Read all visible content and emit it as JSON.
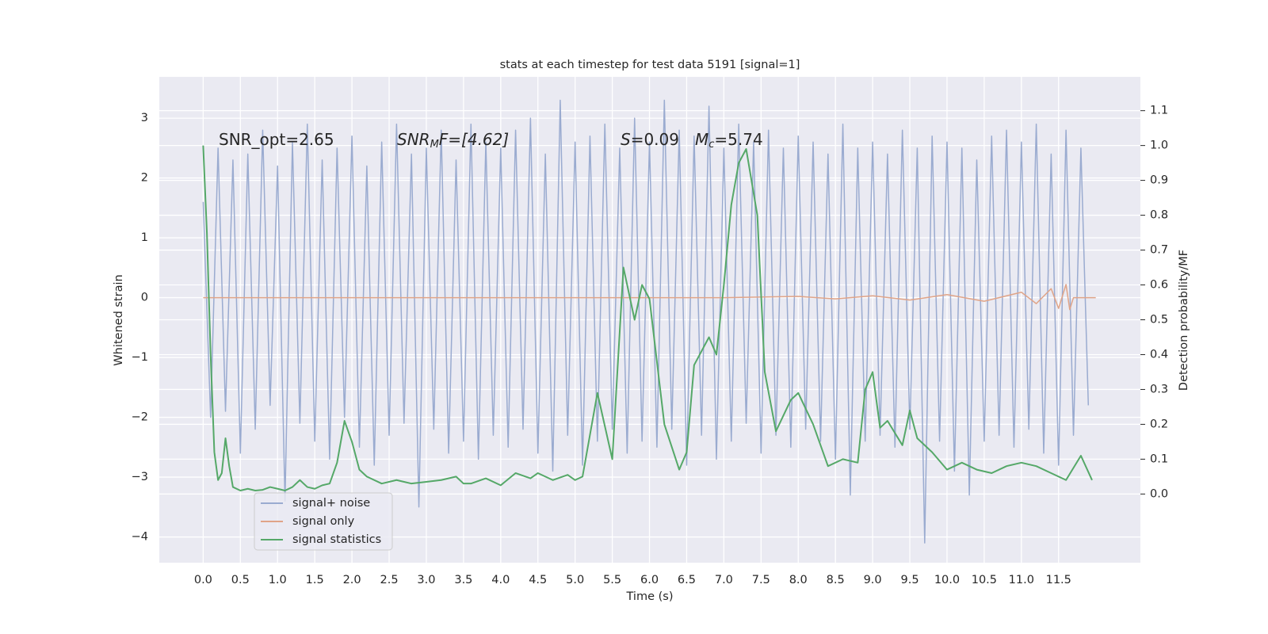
{
  "chart_data": {
    "type": "line",
    "title": "stats at each timestep for test data 5191 [signal=1]",
    "x_label": "Time (s)",
    "y_label": "Whitened strain",
    "y2_label": "Detection probability/MF",
    "xlim": [
      -0.59,
      12.6
    ],
    "ylim": [
      -4.43,
      3.69
    ],
    "y2lim": [
      -0.197,
      1.197
    ],
    "xticks": [
      {
        "value": 0,
        "label": "0.0"
      },
      {
        "value": 0.5,
        "label": "0.5"
      },
      {
        "value": 1,
        "label": "1.0"
      },
      {
        "value": 1.5,
        "label": "1.5"
      },
      {
        "value": 2,
        "label": "2.0"
      },
      {
        "value": 2.5,
        "label": "2.5"
      },
      {
        "value": 3,
        "label": "3.0"
      },
      {
        "value": 3.5,
        "label": "3.5"
      },
      {
        "value": 4,
        "label": "4.0"
      },
      {
        "value": 4.5,
        "label": "4.5"
      },
      {
        "value": 5,
        "label": "5.0"
      },
      {
        "value": 5.5,
        "label": "5.5"
      },
      {
        "value": 6,
        "label": "6.0"
      },
      {
        "value": 6.5,
        "label": "6.5"
      },
      {
        "value": 7,
        "label": "7.0"
      },
      {
        "value": 7.5,
        "label": "7.5"
      },
      {
        "value": 8,
        "label": "8.0"
      },
      {
        "value": 8.5,
        "label": "8.5"
      },
      {
        "value": 9,
        "label": "9.0"
      },
      {
        "value": 9.5,
        "label": "9.5"
      },
      {
        "value": 10,
        "label": "10.0"
      },
      {
        "value": 10.5,
        "label": "10.5"
      },
      {
        "value": 11,
        "label": "11.0"
      },
      {
        "value": 11.5,
        "label": "11.5"
      }
    ],
    "yticks": [
      {
        "value": -4,
        "label": "−4"
      },
      {
        "value": -3,
        "label": "−3"
      },
      {
        "value": -2,
        "label": "−2"
      },
      {
        "value": -1,
        "label": "−1"
      },
      0,
      1,
      2,
      3
    ],
    "y2ticks": [
      {
        "value": 0,
        "label": "0.0"
      },
      {
        "value": 0.1,
        "label": "0.1"
      },
      {
        "value": 0.2,
        "label": "0.2"
      },
      {
        "value": 0.3,
        "label": "0.3"
      },
      {
        "value": 0.4,
        "label": "0.4"
      },
      {
        "value": 0.5,
        "label": "0.5"
      },
      {
        "value": 0.6,
        "label": "0.6"
      },
      {
        "value": 0.7,
        "label": "0.7"
      },
      {
        "value": 0.8,
        "label": "0.8"
      },
      {
        "value": 0.9,
        "label": "0.9"
      },
      {
        "value": 1,
        "label": "1.0"
      },
      {
        "value": 1.1,
        "label": "1.1"
      }
    ],
    "grid": true,
    "legend": "lower left",
    "annotations": [
      [
        "SNR_opt=2.65"
      ],
      [
        "SNR",
        "M",
        "F=[4.62]"
      ],
      [
        "S",
        "=0.09"
      ],
      [
        "M",
        "c",
        "=5.74"
      ]
    ],
    "series": [
      {
        "name": "signal+ noise",
        "color": "#9aabd0",
        "axis": "y",
        "x": [
          0,
          0.1,
          0.2,
          0.3,
          0.4,
          0.5,
          0.6,
          0.7,
          0.8,
          0.9,
          1,
          1.1,
          1.2,
          1.3,
          1.4,
          1.5,
          1.6,
          1.7,
          1.8,
          1.9,
          2,
          2.1,
          2.2,
          2.3,
          2.4,
          2.5,
          2.6,
          2.7,
          2.8,
          2.9,
          3,
          3.1,
          3.2,
          3.3,
          3.4,
          3.5,
          3.6,
          3.7,
          3.8,
          3.9,
          4,
          4.1,
          4.2,
          4.3,
          4.4,
          4.5,
          4.6,
          4.7,
          4.8,
          4.9,
          5,
          5.1,
          5.2,
          5.3,
          5.4,
          5.5,
          5.6,
          5.7,
          5.8,
          5.9,
          6,
          6.1,
          6.2,
          6.3,
          6.4,
          6.5,
          6.6,
          6.7,
          6.8,
          6.9,
          7,
          7.1,
          7.2,
          7.3,
          7.4,
          7.5,
          7.6,
          7.7,
          7.8,
          7.9,
          8,
          8.1,
          8.2,
          8.3,
          8.4,
          8.5,
          8.6,
          8.7,
          8.8,
          8.9,
          9,
          9.1,
          9.2,
          9.3,
          9.4,
          9.5,
          9.6,
          9.7,
          9.8,
          9.9,
          10,
          10.1,
          10.2,
          10.3,
          10.4,
          10.5,
          10.6,
          10.7,
          10.8,
          10.9,
          11,
          11.1,
          11.2,
          11.3,
          11.4,
          11.5,
          11.6,
          11.7,
          11.8,
          11.9
        ],
        "values": [
          1.6,
          -2.0,
          2.5,
          -1.9,
          2.3,
          -2.6,
          2.4,
          -2.2,
          2.8,
          -1.8,
          2.2,
          -3.4,
          2.6,
          -2.1,
          2.9,
          -2.4,
          2.3,
          -2.7,
          2.5,
          -2.0,
          2.7,
          -2.5,
          2.2,
          -2.8,
          2.6,
          -2.3,
          2.9,
          -2.1,
          2.4,
          -3.5,
          2.5,
          -2.2,
          2.8,
          -2.6,
          2.3,
          -2.4,
          2.9,
          -2.7,
          2.6,
          -2.3,
          2.5,
          -2.5,
          2.8,
          -2.2,
          3.0,
          -2.6,
          2.4,
          -2.9,
          3.3,
          -2.3,
          2.6,
          -2.8,
          2.7,
          -2.4,
          2.9,
          -2.2,
          2.5,
          -2.6,
          3.0,
          -2.4,
          2.6,
          -2.5,
          3.3,
          -2.2,
          2.8,
          -2.8,
          2.7,
          -2.3,
          3.2,
          -2.7,
          2.5,
          -2.4,
          2.9,
          -2.1,
          2.6,
          -2.6,
          2.8,
          -2.3,
          2.5,
          -2.5,
          2.7,
          -2.2,
          2.6,
          -2.4,
          2.4,
          -2.7,
          2.9,
          -3.3,
          2.5,
          -2.4,
          2.6,
          -2.3,
          2.4,
          -2.5,
          2.8,
          -2.2,
          2.5,
          -4.1,
          2.7,
          -2.4,
          2.6,
          -2.9,
          2.5,
          -3.3,
          2.3,
          -2.4,
          2.7,
          -2.3,
          2.8,
          -2.5,
          2.6,
          -2.2,
          2.9,
          -2.6,
          2.4,
          -2.8,
          2.8,
          -2.3,
          2.5,
          -1.8
        ]
      },
      {
        "name": "signal only",
        "color": "#e0a488",
        "axis": "y",
        "x": [
          0,
          7,
          8,
          8.5,
          9,
          9.5,
          10,
          10.5,
          11,
          11.2,
          11.4,
          11.5,
          11.6,
          11.65,
          11.7,
          12
        ],
        "values": [
          0,
          0,
          0.02,
          -0.02,
          0.03,
          -0.04,
          0.05,
          -0.06,
          0.09,
          -0.1,
          0.15,
          -0.18,
          0.22,
          -0.2,
          0,
          0
        ]
      },
      {
        "name": "signal statistics",
        "color": "#55a868",
        "axis": "y2",
        "x": [
          0,
          0.05,
          0.1,
          0.15,
          0.2,
          0.25,
          0.3,
          0.35,
          0.4,
          0.5,
          0.6,
          0.7,
          0.8,
          0.9,
          1,
          1.1,
          1.2,
          1.3,
          1.4,
          1.5,
          1.6,
          1.7,
          1.8,
          1.9,
          2,
          2.1,
          2.2,
          2.4,
          2.6,
          2.8,
          3,
          3.2,
          3.4,
          3.5,
          3.6,
          3.8,
          4,
          4.2,
          4.4,
          4.5,
          4.7,
          4.9,
          5,
          5.1,
          5.3,
          5.5,
          5.65,
          5.8,
          5.9,
          6,
          6.2,
          6.4,
          6.5,
          6.6,
          6.8,
          6.9,
          7,
          7.1,
          7.2,
          7.3,
          7.45,
          7.55,
          7.7,
          7.9,
          8,
          8.2,
          8.4,
          8.6,
          8.8,
          8.9,
          9,
          9.1,
          9.2,
          9.4,
          9.5,
          9.6,
          9.8,
          10,
          10.2,
          10.4,
          10.6,
          10.8,
          11,
          11.2,
          11.4,
          11.6,
          11.8,
          11.95
        ],
        "values": [
          1.0,
          0.75,
          0.4,
          0.12,
          0.04,
          0.06,
          0.16,
          0.08,
          0.02,
          0.01,
          0.015,
          0.01,
          0.012,
          0.02,
          0.015,
          0.01,
          0.02,
          0.04,
          0.02,
          0.015,
          0.025,
          0.03,
          0.09,
          0.21,
          0.15,
          0.07,
          0.05,
          0.03,
          0.04,
          0.03,
          0.035,
          0.04,
          0.05,
          0.03,
          0.03,
          0.045,
          0.025,
          0.06,
          0.045,
          0.06,
          0.04,
          0.055,
          0.04,
          0.05,
          0.29,
          0.1,
          0.65,
          0.5,
          0.6,
          0.56,
          0.2,
          0.07,
          0.12,
          0.37,
          0.45,
          0.4,
          0.6,
          0.83,
          0.95,
          0.99,
          0.8,
          0.35,
          0.18,
          0.27,
          0.29,
          0.2,
          0.08,
          0.1,
          0.09,
          0.3,
          0.35,
          0.19,
          0.21,
          0.14,
          0.24,
          0.16,
          0.12,
          0.07,
          0.09,
          0.07,
          0.06,
          0.08,
          0.09,
          0.08,
          0.06,
          0.04,
          0.11,
          0.04
        ]
      }
    ]
  }
}
